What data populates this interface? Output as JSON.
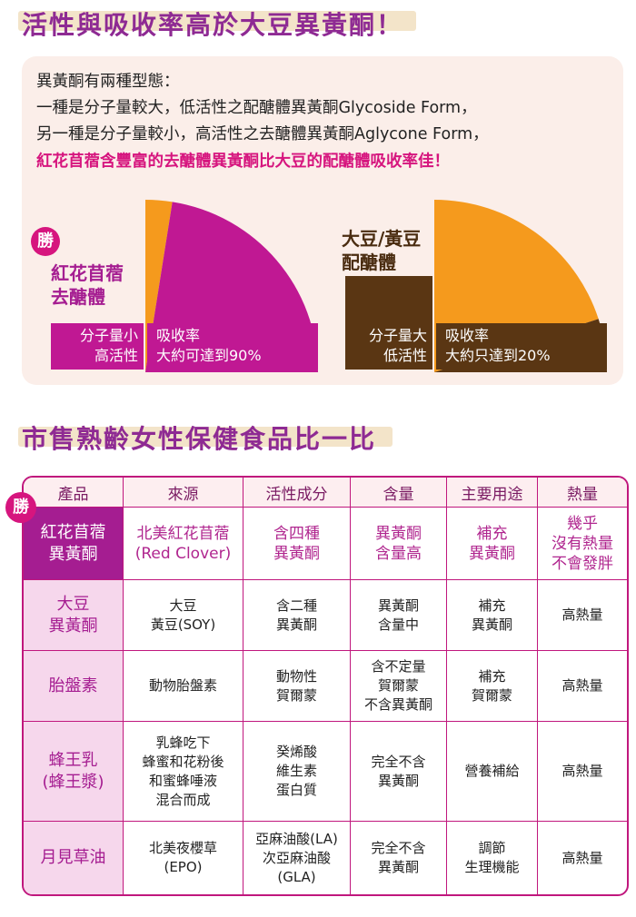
{
  "section1": {
    "title": "活性與吸收率高於大豆異黃酮！",
    "intro_lines": [
      "異黃酮有兩種型態：",
      "一種是分子量較大，低活性之配醣體異黃酮Glycoside Form，",
      "另一種是分子量較小，高活性之去醣體異黃酮Aglycone Form，"
    ],
    "highlight": "紅花苜蓿含豐富的去醣體異黃酮比大豆的配醣體吸收率佳！",
    "left": {
      "badge": "勝",
      "name_line1": "紅花苜蓿",
      "name_line2": "去醣體",
      "tag_line1": "分子量小",
      "tag_line2": "高活性",
      "absorb_line1": "吸收率",
      "absorb_line2": "大約可達到90%",
      "absorption_percent": 90,
      "color_main": "#c01893",
      "color_rest": "#f59a1d"
    },
    "right": {
      "name_line1": "大豆/黃豆",
      "name_line2": "配醣體",
      "tag_line1": "分子量大",
      "tag_line2": "低活性",
      "absorb_line1": "吸收率",
      "absorb_line2": "大約只達到20%",
      "absorption_percent": 20,
      "color_main": "#5a3613",
      "color_rest": "#f59a1d"
    }
  },
  "section2": {
    "title": "市售熟齡女性保健食品比一比",
    "badge": "勝",
    "headers": [
      "產品",
      "來源",
      "活性成分",
      "含量",
      "主要用途",
      "熱量"
    ],
    "rows": [
      {
        "product": "紅花苜蓿\n異黃酮",
        "source": "北美紅花苜蓿\n(Red Clover)",
        "active": "含四種\n異黃酮",
        "amount": "異黃酮\n含量高",
        "use": "補充\n異黃酮",
        "calorie": "幾乎\n沒有熱量\n不會發胖"
      },
      {
        "product": "大豆\n異黃酮",
        "source": "大豆\n黃豆(SOY)",
        "active": "含二種\n異黃酮",
        "amount": "異黃酮\n含量中",
        "use": "補充\n異黃酮",
        "calorie": "高熱量"
      },
      {
        "product": "胎盤素",
        "source": "動物胎盤素",
        "active": "動物性\n賀爾蒙",
        "amount": "含不定量\n賀爾蒙\n不含異黃酮",
        "use": "補充\n賀爾蒙",
        "calorie": "高熱量"
      },
      {
        "product": "蜂王乳\n(蜂王漿)",
        "source": "乳蜂吃下\n蜂蜜和花粉後\n和蜜蜂唾液\n混合而成",
        "active": "癸烯酸\n維生素\n蛋白質",
        "amount": "完全不含\n異黃酮",
        "use": "營養補給",
        "calorie": "高熱量"
      },
      {
        "product": "月見草油",
        "source": "北美夜櫻草\n(EPO)",
        "active": "亞麻油酸(LA)\n次亞麻油酸\n(GLA)",
        "amount": "完全不含\n異黃酮",
        "use": "調節\n生理機能",
        "calorie": "高熱量"
      }
    ]
  }
}
